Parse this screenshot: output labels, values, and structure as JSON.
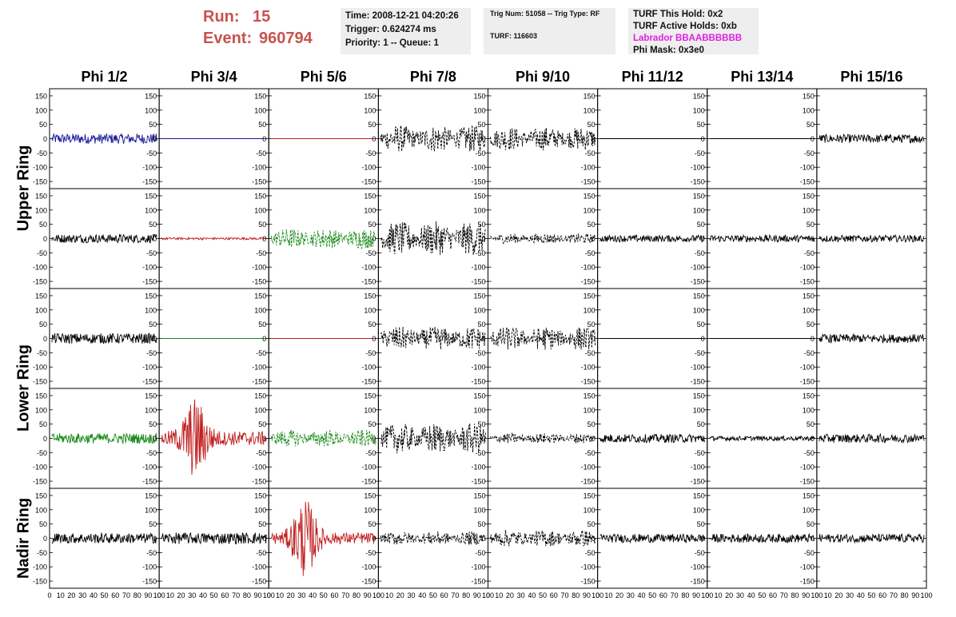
{
  "run_label": "Run:",
  "run_value": "15",
  "event_label": "Event:",
  "event_value": "960794",
  "info_time": "Time: 2008-12-21 04:20:26",
  "info_trigger": "Trigger: 0.624274 ms",
  "info_priority": "Priority: 1 -- Queue: 1",
  "info_trignum": "Trig Num: 51058 -- Trig Type: RF",
  "info_turf": "TURF: 116603",
  "info_hold": "TURF This Hold: 0x2",
  "info_active": "TURF Active Holds: 0xb",
  "info_labrador": "Labrador BBAABBBBBB",
  "info_phimask": "Phi Mask: 0x3e0",
  "colors": {
    "label_red": "#c9524e",
    "magenta": "#e020e0",
    "blue": "#1a1a9a",
    "red": "#c02020",
    "green": "#1a8a1a",
    "black": "#000000"
  },
  "chart_data": {
    "type": "line",
    "columns": [
      "Phi 1/2",
      "Phi 3/4",
      "Phi 5/6",
      "Phi 7/8",
      "Phi 9/10",
      "Phi 11/12",
      "Phi 13/14",
      "Phi 15/16"
    ],
    "ring_labels": [
      "Upper Ring",
      "Lower Ring",
      "Nadir Ring"
    ],
    "ylim": [
      -175,
      175
    ],
    "xlim": [
      0,
      100
    ],
    "yticks": [
      "150",
      "100",
      "50",
      "0",
      "-50",
      "-100",
      "-150"
    ],
    "xticks": [
      "0",
      "10",
      "20",
      "30",
      "40",
      "50",
      "60",
      "70",
      "80",
      "90",
      "100"
    ],
    "panel_traces": [
      [
        {
          "color": "blue",
          "style": "solid",
          "amp": 18
        },
        {
          "color": "blue",
          "style": "flat",
          "amp": 0
        },
        {
          "color": "red",
          "style": "flat",
          "amp": 0
        },
        {
          "color": "black",
          "style": "dashed",
          "amp": 40
        },
        {
          "color": "black",
          "style": "dashed",
          "amp": 35
        },
        {
          "color": "black",
          "style": "flat",
          "amp": 0
        },
        {
          "color": "black",
          "style": "flat",
          "amp": 0
        },
        {
          "color": "black",
          "style": "solid",
          "amp": 15
        }
      ],
      [
        {
          "color": "black",
          "style": "solid",
          "amp": 15
        },
        {
          "color": "red",
          "style": "solid",
          "amp": 4
        },
        {
          "color": "green",
          "style": "dashed",
          "amp": 30
        },
        {
          "color": "black",
          "style": "dashed",
          "amp": 50
        },
        {
          "color": "black",
          "style": "dashed",
          "amp": 15
        },
        {
          "color": "black",
          "style": "solid",
          "amp": 12
        },
        {
          "color": "black",
          "style": "solid",
          "amp": 12
        },
        {
          "color": "black",
          "style": "solid",
          "amp": 12
        }
      ],
      [
        {
          "color": "black",
          "style": "solid",
          "amp": 18
        },
        {
          "color": "green",
          "style": "flat",
          "amp": 0
        },
        {
          "color": "red",
          "style": "flat",
          "amp": 0
        },
        {
          "color": "black",
          "style": "dashed",
          "amp": 35
        },
        {
          "color": "black",
          "style": "dashed",
          "amp": 35
        },
        {
          "color": "black",
          "style": "flat",
          "amp": 0
        },
        {
          "color": "black",
          "style": "flat",
          "amp": 0
        },
        {
          "color": "black",
          "style": "solid",
          "amp": 15
        }
      ],
      [
        {
          "color": "green",
          "style": "solid",
          "amp": 18
        },
        {
          "color": "red",
          "style": "burst",
          "amp": 25
        },
        {
          "color": "green",
          "style": "dashed",
          "amp": 25
        },
        {
          "color": "black",
          "style": "dashed",
          "amp": 45
        },
        {
          "color": "black",
          "style": "dashed",
          "amp": 15
        },
        {
          "color": "black",
          "style": "solid",
          "amp": 15
        },
        {
          "color": "black",
          "style": "solid",
          "amp": 8
        },
        {
          "color": "black",
          "style": "solid",
          "amp": 15
        }
      ],
      [
        {
          "color": "black",
          "style": "solid",
          "amp": 18
        },
        {
          "color": "black",
          "style": "solid",
          "amp": 20
        },
        {
          "color": "red",
          "style": "burst",
          "amp": 20
        },
        {
          "color": "black",
          "style": "dashed",
          "amp": 20
        },
        {
          "color": "black",
          "style": "dashed",
          "amp": 25
        },
        {
          "color": "black",
          "style": "solid",
          "amp": 15
        },
        {
          "color": "black",
          "style": "solid",
          "amp": 15
        },
        {
          "color": "black",
          "style": "solid",
          "amp": 15
        }
      ]
    ]
  }
}
